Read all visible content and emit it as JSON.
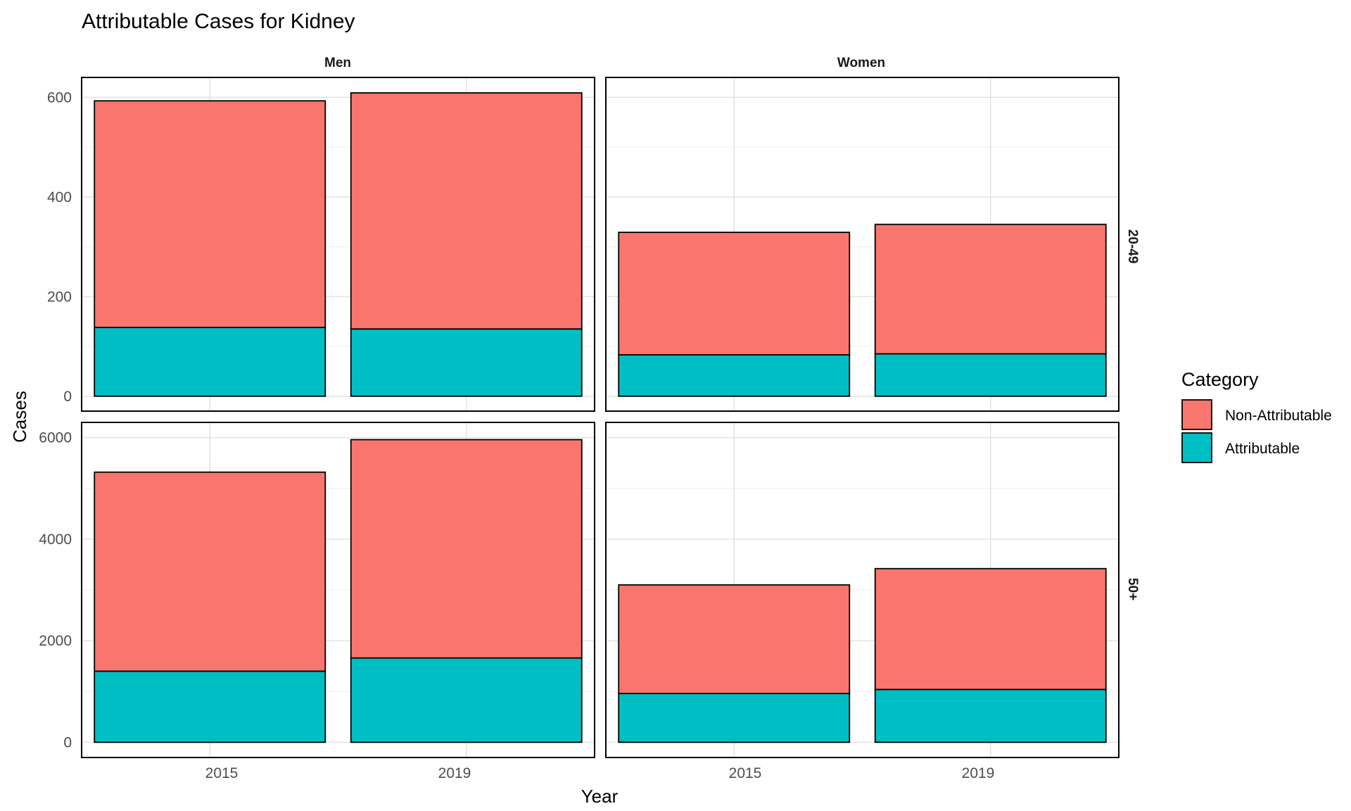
{
  "chart_data": {
    "type": "bar",
    "stacked": true,
    "title": "Attributable Cases for Kidney",
    "xlabel": "Year",
    "ylabel": "Cases",
    "x_categories": [
      "2015",
      "2019"
    ],
    "columns": [
      "Men",
      "Women"
    ],
    "rows": [
      "20-49",
      "50+"
    ],
    "legend": {
      "title": "Category",
      "position": "right",
      "entries": [
        {
          "name": "Non-Attributable",
          "color": "#F8766D"
        },
        {
          "name": "Attributable",
          "color": "#00BFC4"
        }
      ]
    },
    "grid": true,
    "row_axes": [
      {
        "row": "20-49",
        "ylim": [
          -30,
          640
        ],
        "ticks": [
          0,
          200,
          400,
          600
        ],
        "tick_labels": [
          "0",
          "200",
          "400",
          "600"
        ],
        "minor_ticks": [
          100,
          300,
          500
        ]
      },
      {
        "row": "50+",
        "ylim": [
          -300,
          6300
        ],
        "ticks": [
          0,
          2000,
          4000,
          6000
        ],
        "tick_labels": [
          "0",
          "2000",
          "4000",
          "6000"
        ],
        "minor_ticks": [
          1000,
          3000,
          5000
        ]
      }
    ],
    "panels": [
      {
        "column": "Men",
        "row": "20-49",
        "series": [
          {
            "name": "Attributable",
            "values": [
              138,
              135
            ]
          },
          {
            "name": "Non-Attributable",
            "values": [
              455,
              474
            ]
          }
        ]
      },
      {
        "column": "Women",
        "row": "20-49",
        "series": [
          {
            "name": "Attributable",
            "values": [
              83,
              85
            ]
          },
          {
            "name": "Non-Attributable",
            "values": [
              246,
              260
            ]
          }
        ]
      },
      {
        "column": "Men",
        "row": "50+",
        "series": [
          {
            "name": "Attributable",
            "values": [
              1400,
              1660
            ]
          },
          {
            "name": "Non-Attributable",
            "values": [
              3920,
              4300
            ]
          }
        ]
      },
      {
        "column": "Women",
        "row": "50+",
        "series": [
          {
            "name": "Attributable",
            "values": [
              960,
              1040
            ]
          },
          {
            "name": "Non-Attributable",
            "values": [
              2140,
              2380
            ]
          }
        ]
      }
    ]
  }
}
